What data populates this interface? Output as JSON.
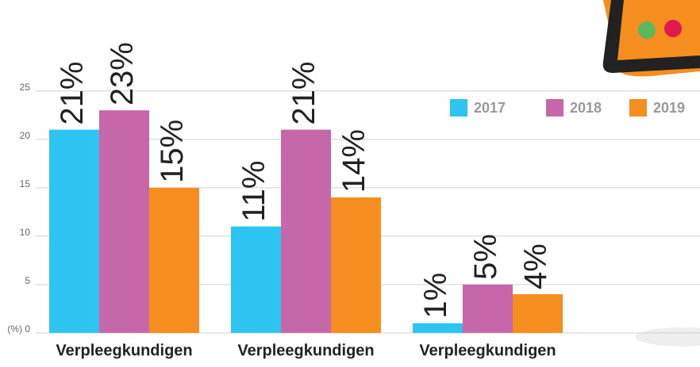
{
  "chart_data": {
    "type": "bar",
    "categories": [
      "Verpleegkundigen",
      "Verpleegkundigen",
      "Verpleegkundigen"
    ],
    "series": [
      {
        "name": "2017",
        "color": "#2ec4f1",
        "values": [
          21,
          11,
          1
        ],
        "value_labels": [
          "21%",
          "11%",
          "1%"
        ]
      },
      {
        "name": "2018",
        "color": "#c567a8",
        "values": [
          23,
          21,
          5
        ],
        "value_labels": [
          "23%",
          "21%",
          "5%"
        ]
      },
      {
        "name": "2019",
        "color": "#f68e1f",
        "values": [
          15,
          14,
          4
        ],
        "value_labels": [
          "15%",
          "14%",
          "4%"
        ]
      }
    ],
    "ylim": [
      0,
      34.4
    ],
    "yticks": [
      {
        "value": 0,
        "label": "(%) 0"
      },
      5,
      10,
      15,
      20,
      25
    ],
    "grid": true,
    "legend": "top-right"
  }
}
